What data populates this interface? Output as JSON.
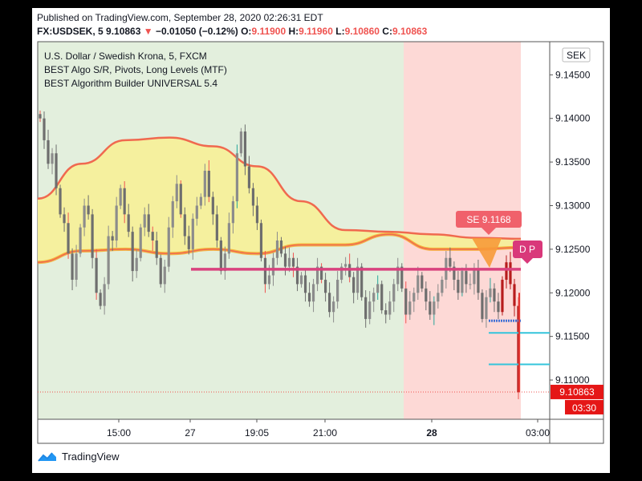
{
  "header": {
    "published": "Published on TradingView.com, September 28, 2020 02:26:31 EDT",
    "symbol": "FX:USDSEK, 5",
    "price": "9.10863",
    "change": "−0.01050 (−0.12%)",
    "o_label": "O:",
    "o_value": "9.11900",
    "h_label": "H:",
    "h_value": "9.11960",
    "l_label": "L:",
    "l_value": "9.10860",
    "c_label": "C:",
    "c_value": "9.10863"
  },
  "indicators": [
    "U.S. Dollar / Swedish Krona, 5, FXCM",
    "BEST Algo S/R, Pivots, Long Levels (MTF)",
    "BEST Algorithm Builder UNIVERSAL 5.4"
  ],
  "brand": "TradingView",
  "colors": {
    "up": "#26a69a",
    "down": "#ef5350",
    "candle": "#7b7b7b",
    "band_fill": "#f6ef9a",
    "band_line": "#f0694f",
    "green_bg": "#e3efdd",
    "red_bg": "#fdd9d6",
    "level_line": "#d9427e",
    "cyan": "#34c4db",
    "blue": "#3d6fd6"
  },
  "chart_data": {
    "type": "candlestick",
    "currency_label": "SEK",
    "y_ticks": [
      "9.14500",
      "9.14000",
      "9.13500",
      "9.13000",
      "9.12500",
      "9.12000",
      "9.11500",
      "9.11000"
    ],
    "y_tick_values": [
      9.145,
      9.14,
      9.135,
      9.13,
      9.125,
      9.12,
      9.115,
      9.11
    ],
    "ylim": [
      9.1055,
      9.1488
    ],
    "x_ticks": [
      "15:00",
      "27",
      "19:05",
      "21:00",
      "28",
      "03:00"
    ],
    "x_tick_bold": [
      false,
      false,
      false,
      false,
      true,
      false
    ],
    "last_price": "9.10863",
    "last_price_value": 9.10863,
    "countdown": "03:30",
    "se_label": "SE 9.1168",
    "se_value": 9.1168,
    "dp_label": "D P",
    "pink_level": 9.1227,
    "cyan_levels": [
      9.1154,
      9.1118
    ],
    "blue_level": 9.1168,
    "band_upper": [
      9.1308,
      9.1348,
      9.1375,
      9.1378,
      9.1368,
      9.1345,
      9.1305,
      9.1272,
      9.127,
      9.1267,
      9.1263,
      9.1262
    ],
    "band_lower": [
      9.1235,
      9.1248,
      9.125,
      9.1245,
      9.125,
      9.1245,
      9.1255,
      9.1255,
      9.1267,
      9.125,
      9.125,
      9.1252
    ],
    "candles_close": [
      9.14,
      9.1375,
      9.1348,
      9.136,
      9.132,
      9.129,
      9.128,
      9.1245,
      9.1215,
      9.1245,
      9.1275,
      9.13,
      9.129,
      9.124,
      9.12,
      9.1185,
      9.121,
      9.1265,
      9.126,
      9.13,
      9.132,
      9.129,
      9.127,
      9.1225,
      9.124,
      9.1275,
      9.129,
      9.127,
      9.126,
      9.124,
      9.121,
      9.123,
      9.1275,
      9.1305,
      9.1325,
      9.129,
      9.1265,
      9.125,
      9.1285,
      9.13,
      9.131,
      9.134,
      9.131,
      9.129,
      9.126,
      9.1225,
      9.1245,
      9.128,
      9.1305,
      9.136,
      9.1385,
      9.1345,
      9.132,
      9.13,
      9.128,
      9.124,
      9.121,
      9.122,
      9.124,
      9.126,
      9.1245,
      9.123,
      9.124,
      9.123,
      9.121,
      9.122,
      9.12,
      9.119,
      9.121,
      9.123,
      9.1215,
      9.12,
      9.1178,
      9.119,
      9.1215,
      9.123,
      9.1233,
      9.1218,
      9.12,
      9.123,
      9.1195,
      9.117,
      9.119,
      9.12,
      9.121,
      9.118,
      9.1175,
      9.119,
      9.121,
      9.123,
      9.1205,
      9.1175,
      9.119,
      9.12,
      9.122,
      9.1205,
      9.119,
      9.1175,
      9.119,
      9.12,
      9.1215,
      9.124,
      9.123,
      9.1215,
      9.12,
      9.1225,
      9.121,
      9.121,
      9.1228,
      9.12,
      9.117,
      9.1195,
      9.1205,
      9.119,
      9.1178,
      9.1215,
      9.1235,
      9.121,
      9.1185,
      9.1086
    ]
  }
}
